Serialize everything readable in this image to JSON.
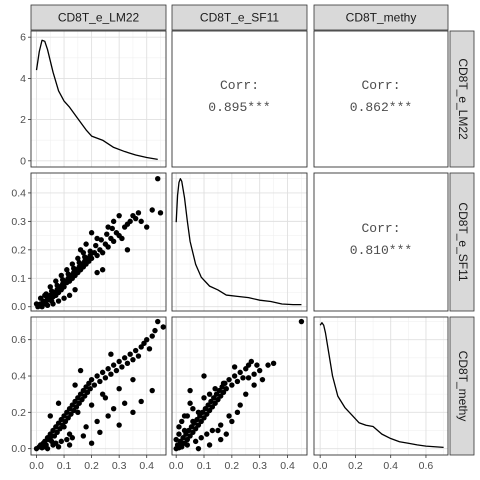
{
  "chart_data": {
    "type": "scatter",
    "variables": [
      "CD8T_e_LM22",
      "CD8T_e_SF11",
      "CD8T_methy"
    ],
    "correlations": [
      {
        "row": 0,
        "col": 1,
        "label": "Corr:",
        "value": "0.895***"
      },
      {
        "row": 0,
        "col": 2,
        "label": "Corr:",
        "value": "0.862***"
      },
      {
        "row": 1,
        "col": 2,
        "label": "Corr:",
        "value": "0.810***"
      }
    ],
    "axis_ranges": {
      "CD8T_e_LM22": [
        -0.02,
        0.47
      ],
      "CD8T_e_SF11": [
        -0.015,
        0.47
      ],
      "CD8T_methy": [
        -0.035,
        0.725
      ]
    },
    "x_ticks": {
      "CD8T_e_LM22": [
        "0.0",
        "0.1",
        "0.2",
        "0.3",
        "0.4"
      ],
      "CD8T_e_SF11": [
        "0.0",
        "0.1",
        "0.2",
        "0.3",
        "0.4"
      ],
      "CD8T_methy": [
        "0.0",
        "0.2",
        "0.4",
        "0.6"
      ]
    },
    "x_tick_values": {
      "CD8T_e_LM22": [
        0,
        0.1,
        0.2,
        0.3,
        0.4
      ],
      "CD8T_e_SF11": [
        0,
        0.1,
        0.2,
        0.3,
        0.4
      ],
      "CD8T_methy": [
        0,
        0.2,
        0.4,
        0.6
      ]
    },
    "y_ticks": {
      "row0": [
        "0",
        "2",
        "4",
        "6"
      ],
      "row1": [
        "0.0",
        "0.1",
        "0.2",
        "0.3",
        "0.4"
      ],
      "row2": [
        "0.0",
        "0.2",
        "0.4",
        "0.6"
      ]
    },
    "y_tick_values": {
      "row0": [
        0,
        2,
        4,
        6
      ],
      "row1": [
        0,
        0.1,
        0.2,
        0.3,
        0.4
      ],
      "row2": [
        0,
        0.2,
        0.4,
        0.6
      ]
    },
    "density_ylim_row0": [
      -0.3,
      6.3
    ],
    "density": {
      "CD8T_e_LM22": {
        "x": [
          0.0,
          0.01,
          0.02,
          0.03,
          0.04,
          0.06,
          0.08,
          0.1,
          0.12,
          0.15,
          0.18,
          0.2,
          0.24,
          0.28,
          0.32,
          0.36,
          0.4,
          0.44
        ],
        "y": [
          4.4,
          5.3,
          5.85,
          5.8,
          5.4,
          4.3,
          3.4,
          2.9,
          2.6,
          2.05,
          1.5,
          1.2,
          1.0,
          0.65,
          0.45,
          0.28,
          0.16,
          0.07
        ]
      },
      "CD8T_e_SF11": {
        "x": [
          0.0,
          0.005,
          0.01,
          0.015,
          0.02,
          0.03,
          0.04,
          0.05,
          0.07,
          0.09,
          0.12,
          0.15,
          0.18,
          0.22,
          0.26,
          0.3,
          0.34,
          0.38,
          0.42,
          0.45
        ],
        "y": [
          0.65,
          0.86,
          0.96,
          0.99,
          0.97,
          0.84,
          0.66,
          0.5,
          0.32,
          0.22,
          0.15,
          0.12,
          0.08,
          0.07,
          0.06,
          0.04,
          0.03,
          0.01,
          0.005,
          0.005
        ]
      },
      "CD8T_methy": {
        "x": [
          0.0,
          0.01,
          0.02,
          0.03,
          0.05,
          0.07,
          0.1,
          0.14,
          0.18,
          0.22,
          0.26,
          0.3,
          0.35,
          0.4,
          0.45,
          0.5,
          0.55,
          0.6,
          0.65,
          0.7
        ],
        "y": [
          0.98,
          1.0,
          0.98,
          0.92,
          0.75,
          0.58,
          0.42,
          0.33,
          0.27,
          0.21,
          0.19,
          0.18,
          0.12,
          0.085,
          0.06,
          0.048,
          0.035,
          0.025,
          0.02,
          0.015
        ]
      }
    },
    "scatter": {
      "LM22_vs_SF11": [
        [
          0.01,
          0.005
        ],
        [
          0.015,
          0.01
        ],
        [
          0.02,
          0.0
        ],
        [
          0.025,
          0.02
        ],
        [
          0.03,
          0.015
        ],
        [
          0.035,
          0.01
        ],
        [
          0.04,
          0.03
        ],
        [
          0.045,
          0.025
        ],
        [
          0.05,
          0.04
        ],
        [
          0.055,
          0.02
        ],
        [
          0.06,
          0.035
        ],
        [
          0.065,
          0.05
        ],
        [
          0.07,
          0.04
        ],
        [
          0.075,
          0.06
        ],
        [
          0.08,
          0.05
        ],
        [
          0.085,
          0.07
        ],
        [
          0.09,
          0.06
        ],
        [
          0.095,
          0.08
        ],
        [
          0.1,
          0.07
        ],
        [
          0.105,
          0.09
        ],
        [
          0.11,
          0.085
        ],
        [
          0.115,
          0.1
        ],
        [
          0.12,
          0.09
        ],
        [
          0.125,
          0.11
        ],
        [
          0.13,
          0.1
        ],
        [
          0.135,
          0.12
        ],
        [
          0.14,
          0.11
        ],
        [
          0.145,
          0.13
        ],
        [
          0.15,
          0.12
        ],
        [
          0.155,
          0.14
        ],
        [
          0.16,
          0.13
        ],
        [
          0.165,
          0.15
        ],
        [
          0.17,
          0.14
        ],
        [
          0.175,
          0.16
        ],
        [
          0.18,
          0.15
        ],
        [
          0.185,
          0.17
        ],
        [
          0.19,
          0.16
        ],
        [
          0.195,
          0.18
        ],
        [
          0.2,
          0.17
        ],
        [
          0.21,
          0.19
        ],
        [
          0.22,
          0.18
        ],
        [
          0.23,
          0.2
        ],
        [
          0.24,
          0.19
        ],
        [
          0.25,
          0.22
        ],
        [
          0.26,
          0.21
        ],
        [
          0.27,
          0.24
        ],
        [
          0.28,
          0.23
        ],
        [
          0.29,
          0.26
        ],
        [
          0.3,
          0.25
        ],
        [
          0.31,
          0.24
        ],
        [
          0.32,
          0.28
        ],
        [
          0.33,
          0.29
        ],
        [
          0.34,
          0.3
        ],
        [
          0.35,
          0.32
        ],
        [
          0.36,
          0.31
        ],
        [
          0.37,
          0.33
        ],
        [
          0.38,
          0.3
        ],
        [
          0.4,
          0.28
        ],
        [
          0.42,
          0.34
        ],
        [
          0.45,
          0.33
        ],
        [
          0.44,
          0.45
        ],
        [
          0.33,
          0.2
        ],
        [
          0.3,
          0.32
        ],
        [
          0.28,
          0.3
        ],
        [
          0.26,
          0.28
        ],
        [
          0.22,
          0.24
        ],
        [
          0.2,
          0.26
        ],
        [
          0.18,
          0.22
        ],
        [
          0.16,
          0.2
        ],
        [
          0.24,
          0.13
        ],
        [
          0.22,
          0.12
        ],
        [
          0.14,
          0.06
        ],
        [
          0.12,
          0.04
        ],
        [
          0.1,
          0.03
        ],
        [
          0.08,
          0.02
        ],
        [
          0.06,
          0.01
        ],
        [
          0.04,
          0.005
        ],
        [
          0.02,
          0.002
        ],
        [
          0.03,
          0.04
        ],
        [
          0.05,
          0.07
        ],
        [
          0.07,
          0.09
        ],
        [
          0.09,
          0.11
        ],
        [
          0.11,
          0.13
        ],
        [
          0.13,
          0.15
        ],
        [
          0.15,
          0.17
        ],
        [
          0.17,
          0.19
        ],
        [
          0.005,
          0.0
        ],
        [
          0.0,
          0.01
        ],
        [
          0.015,
          0.03
        ],
        [
          0.035,
          0.045
        ],
        [
          0.055,
          0.055
        ],
        [
          0.075,
          0.075
        ],
        [
          0.095,
          0.095
        ],
        [
          0.115,
          0.115
        ],
        [
          0.135,
          0.135
        ],
        [
          0.155,
          0.155
        ],
        [
          0.175,
          0.175
        ],
        [
          0.195,
          0.195
        ],
        [
          0.215,
          0.215
        ],
        [
          0.235,
          0.235
        ],
        [
          0.255,
          0.255
        ],
        [
          0.275,
          0.275
        ]
      ],
      "LM22_vs_methy": [
        [
          0.0,
          0.0
        ],
        [
          0.01,
          0.01
        ],
        [
          0.015,
          0.02
        ],
        [
          0.02,
          0.005
        ],
        [
          0.025,
          0.03
        ],
        [
          0.03,
          0.04
        ],
        [
          0.035,
          0.02
        ],
        [
          0.04,
          0.06
        ],
        [
          0.045,
          0.05
        ],
        [
          0.05,
          0.08
        ],
        [
          0.055,
          0.04
        ],
        [
          0.06,
          0.1
        ],
        [
          0.065,
          0.07
        ],
        [
          0.07,
          0.12
        ],
        [
          0.075,
          0.09
        ],
        [
          0.08,
          0.14
        ],
        [
          0.085,
          0.11
        ],
        [
          0.09,
          0.16
        ],
        [
          0.095,
          0.13
        ],
        [
          0.1,
          0.18
        ],
        [
          0.105,
          0.15
        ],
        [
          0.11,
          0.2
        ],
        [
          0.115,
          0.17
        ],
        [
          0.12,
          0.22
        ],
        [
          0.125,
          0.19
        ],
        [
          0.13,
          0.24
        ],
        [
          0.135,
          0.21
        ],
        [
          0.14,
          0.26
        ],
        [
          0.145,
          0.23
        ],
        [
          0.15,
          0.28
        ],
        [
          0.155,
          0.25
        ],
        [
          0.16,
          0.3
        ],
        [
          0.165,
          0.27
        ],
        [
          0.17,
          0.32
        ],
        [
          0.175,
          0.29
        ],
        [
          0.18,
          0.34
        ],
        [
          0.185,
          0.31
        ],
        [
          0.19,
          0.36
        ],
        [
          0.195,
          0.33
        ],
        [
          0.2,
          0.38
        ],
        [
          0.21,
          0.35
        ],
        [
          0.22,
          0.4
        ],
        [
          0.23,
          0.37
        ],
        [
          0.24,
          0.42
        ],
        [
          0.25,
          0.39
        ],
        [
          0.26,
          0.44
        ],
        [
          0.27,
          0.41
        ],
        [
          0.28,
          0.46
        ],
        [
          0.29,
          0.43
        ],
        [
          0.3,
          0.48
        ],
        [
          0.31,
          0.45
        ],
        [
          0.32,
          0.5
        ],
        [
          0.33,
          0.47
        ],
        [
          0.34,
          0.52
        ],
        [
          0.35,
          0.49
        ],
        [
          0.36,
          0.54
        ],
        [
          0.37,
          0.51
        ],
        [
          0.38,
          0.56
        ],
        [
          0.39,
          0.58
        ],
        [
          0.4,
          0.6
        ],
        [
          0.42,
          0.62
        ],
        [
          0.44,
          0.7
        ],
        [
          0.46,
          0.67
        ],
        [
          0.41,
          0.55
        ],
        [
          0.43,
          0.65
        ],
        [
          0.35,
          0.38
        ],
        [
          0.3,
          0.33
        ],
        [
          0.25,
          0.28
        ],
        [
          0.2,
          0.24
        ],
        [
          0.15,
          0.2
        ],
        [
          0.1,
          0.12
        ],
        [
          0.05,
          0.06
        ],
        [
          0.12,
          0.08
        ],
        [
          0.18,
          0.12
        ],
        [
          0.22,
          0.15
        ],
        [
          0.26,
          0.18
        ],
        [
          0.28,
          0.22
        ],
        [
          0.32,
          0.25
        ],
        [
          0.14,
          0.35
        ],
        [
          0.16,
          0.43
        ],
        [
          0.05,
          0.18
        ],
        [
          0.08,
          0.25
        ],
        [
          0.24,
          0.3
        ],
        [
          0.27,
          0.52
        ],
        [
          0.12,
          0.02
        ],
        [
          0.2,
          0.03
        ],
        [
          0.08,
          0.01
        ],
        [
          0.3,
          0.13
        ],
        [
          0.17,
          0.07
        ],
        [
          0.23,
          0.09
        ],
        [
          0.35,
          0.2
        ],
        [
          0.38,
          0.26
        ],
        [
          0.42,
          0.32
        ],
        [
          0.06,
          0.02
        ],
        [
          0.09,
          0.04
        ],
        [
          0.11,
          0.05
        ],
        [
          0.13,
          0.06
        ],
        [
          0.03,
          0.01
        ],
        [
          0.07,
          0.03
        ],
        [
          0.04,
          0.0
        ]
      ],
      "SF11_vs_methy": [
        [
          0.0,
          0.0
        ],
        [
          0.005,
          0.02
        ],
        [
          0.01,
          0.005
        ],
        [
          0.015,
          0.04
        ],
        [
          0.02,
          0.01
        ],
        [
          0.025,
          0.06
        ],
        [
          0.03,
          0.03
        ],
        [
          0.035,
          0.08
        ],
        [
          0.04,
          0.05
        ],
        [
          0.045,
          0.1
        ],
        [
          0.05,
          0.07
        ],
        [
          0.055,
          0.12
        ],
        [
          0.06,
          0.09
        ],
        [
          0.065,
          0.14
        ],
        [
          0.07,
          0.11
        ],
        [
          0.075,
          0.16
        ],
        [
          0.08,
          0.13
        ],
        [
          0.085,
          0.18
        ],
        [
          0.09,
          0.15
        ],
        [
          0.095,
          0.2
        ],
        [
          0.1,
          0.17
        ],
        [
          0.105,
          0.22
        ],
        [
          0.11,
          0.19
        ],
        [
          0.115,
          0.24
        ],
        [
          0.12,
          0.21
        ],
        [
          0.125,
          0.26
        ],
        [
          0.13,
          0.23
        ],
        [
          0.135,
          0.28
        ],
        [
          0.14,
          0.25
        ],
        [
          0.145,
          0.3
        ],
        [
          0.15,
          0.27
        ],
        [
          0.155,
          0.32
        ],
        [
          0.16,
          0.29
        ],
        [
          0.165,
          0.34
        ],
        [
          0.17,
          0.31
        ],
        [
          0.175,
          0.36
        ],
        [
          0.18,
          0.33
        ],
        [
          0.19,
          0.38
        ],
        [
          0.2,
          0.35
        ],
        [
          0.21,
          0.4
        ],
        [
          0.22,
          0.37
        ],
        [
          0.23,
          0.42
        ],
        [
          0.24,
          0.39
        ],
        [
          0.25,
          0.44
        ],
        [
          0.26,
          0.46
        ],
        [
          0.27,
          0.48
        ],
        [
          0.28,
          0.41
        ],
        [
          0.3,
          0.43
        ],
        [
          0.33,
          0.46
        ],
        [
          0.35,
          0.47
        ],
        [
          0.45,
          0.7
        ],
        [
          0.1,
          0.4
        ],
        [
          0.12,
          0.3
        ],
        [
          0.05,
          0.25
        ],
        [
          0.08,
          0.2
        ],
        [
          0.15,
          0.1
        ],
        [
          0.2,
          0.15
        ],
        [
          0.18,
          0.08
        ],
        [
          0.25,
          0.3
        ],
        [
          0.22,
          0.2
        ],
        [
          0.03,
          0.1
        ],
        [
          0.06,
          0.15
        ],
        [
          0.01,
          0.08
        ],
        [
          0.02,
          0.03
        ],
        [
          0.04,
          0.02
        ],
        [
          0.07,
          0.04
        ],
        [
          0.09,
          0.06
        ],
        [
          0.11,
          0.08
        ],
        [
          0.13,
          0.1
        ],
        [
          0.16,
          0.13
        ],
        [
          0.19,
          0.18
        ],
        [
          0.23,
          0.24
        ],
        [
          0.28,
          0.35
        ],
        [
          0.31,
          0.38
        ],
        [
          0.08,
          0.0
        ],
        [
          0.12,
          0.02
        ],
        [
          0.16,
          0.05
        ],
        [
          0.02,
          0.15
        ],
        [
          0.04,
          0.18
        ],
        [
          0.06,
          0.22
        ],
        [
          0.1,
          0.28
        ],
        [
          0.14,
          0.33
        ],
        [
          0.17,
          0.36
        ],
        [
          0.21,
          0.45
        ],
        [
          0.26,
          0.39
        ],
        [
          0.29,
          0.46
        ],
        [
          0.0,
          0.05
        ],
        [
          0.01,
          0.12
        ],
        [
          0.03,
          0.18
        ],
        [
          0.05,
          0.32
        ]
      ]
    }
  }
}
